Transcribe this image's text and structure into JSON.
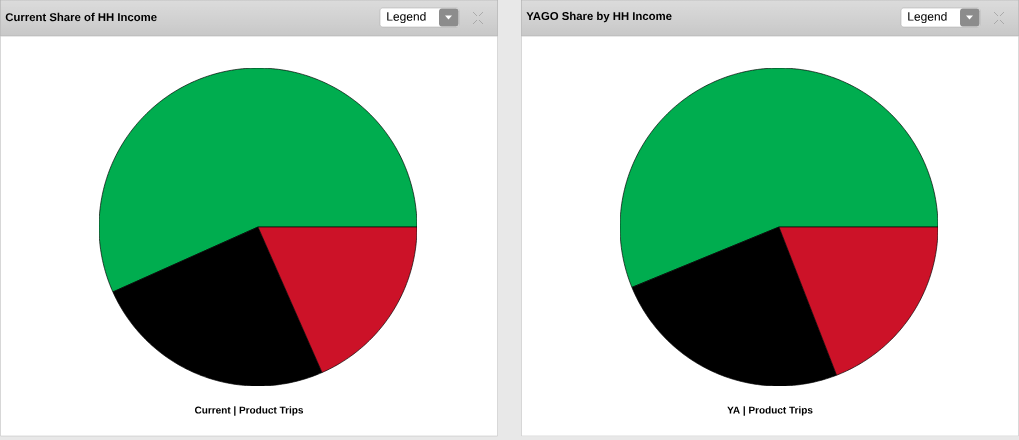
{
  "chart_data": [
    {
      "type": "pie",
      "title": "Current Share of HH Income",
      "xlabel": "Current | Product Trips",
      "annotations": [
        "Legend"
      ],
      "categories": [
        null,
        null,
        null
      ],
      "values": [
        56.7,
        24.9,
        18.4
      ],
      "colors": [
        "#00ad4f",
        "#000000",
        "#cc1228"
      ]
    },
    {
      "type": "pie",
      "title": "YAGO Share by HH Income",
      "xlabel": "YA | Product Trips",
      "annotations": [
        "Legend"
      ],
      "categories": [
        null,
        null,
        null
      ],
      "values": [
        56.2,
        24.7,
        19.1
      ],
      "colors": [
        "#00ad4f",
        "#000000",
        "#cc1228"
      ]
    }
  ]
}
